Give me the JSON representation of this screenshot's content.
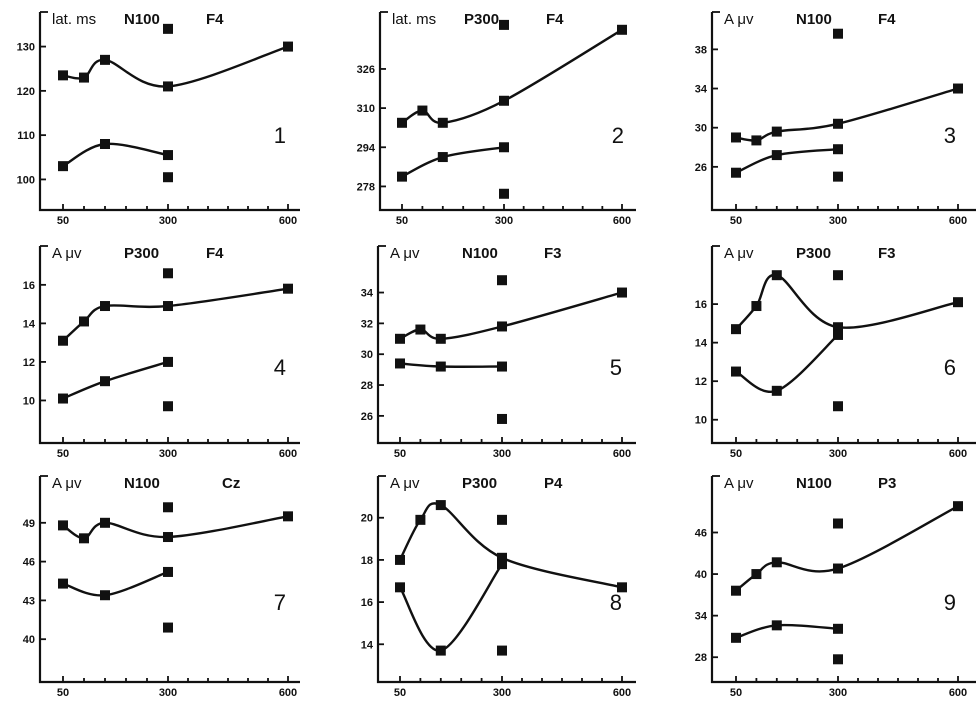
{
  "chart_data": [
    {
      "panel": "1",
      "type": "line",
      "header": [
        "lat. ms",
        "N100",
        "F4"
      ],
      "x_ticks": [
        50,
        300,
        600
      ],
      "y_ticks": [
        100,
        110,
        120,
        130
      ],
      "ylim": [
        94,
        136
      ],
      "series": [
        {
          "x": [
            50,
            100,
            150,
            300,
            600
          ],
          "y": [
            123.5,
            123,
            127,
            121,
            130
          ]
        },
        {
          "x": [
            50,
            150,
            300
          ],
          "y": [
            103,
            108,
            105.5
          ]
        }
      ],
      "points": [
        {
          "x": 300,
          "y": 134
        },
        {
          "x": 300,
          "y": 100.5
        }
      ]
    },
    {
      "panel": "2",
      "type": "line",
      "header": [
        "lat. ms",
        "P300",
        "F4"
      ],
      "x_ticks": [
        50,
        300,
        600
      ],
      "y_ticks": [
        278,
        294,
        310,
        326
      ],
      "ylim": [
        270,
        346
      ],
      "series": [
        {
          "x": [
            50,
            100,
            150,
            300,
            600
          ],
          "y": [
            304,
            309,
            304,
            313,
            342
          ]
        },
        {
          "x": [
            50,
            150,
            300
          ],
          "y": [
            282,
            290,
            294
          ]
        }
      ],
      "points": [
        {
          "x": 300,
          "y": 344
        },
        {
          "x": 300,
          "y": 275
        }
      ]
    },
    {
      "panel": "3",
      "type": "line",
      "header": [
        "A μv",
        "N100",
        "F4"
      ],
      "x_ticks": [
        50,
        300,
        600
      ],
      "y_ticks": [
        26,
        30,
        34,
        38
      ],
      "ylim": [
        22,
        41
      ],
      "series": [
        {
          "x": [
            50,
            100,
            150,
            300,
            600
          ],
          "y": [
            29,
            28.7,
            29.6,
            30.4,
            34
          ]
        },
        {
          "x": [
            50,
            150,
            300
          ],
          "y": [
            25.4,
            27.2,
            27.8
          ]
        }
      ],
      "points": [
        {
          "x": 300,
          "y": 39.6
        },
        {
          "x": 300,
          "y": 25
        }
      ]
    },
    {
      "panel": "4",
      "type": "line",
      "header": [
        "A μv",
        "P300",
        "F4"
      ],
      "x_ticks": [
        50,
        300,
        600
      ],
      "y_ticks": [
        10,
        12,
        14,
        16
      ],
      "ylim": [
        8,
        17.6
      ],
      "series": [
        {
          "x": [
            50,
            100,
            150,
            300,
            600
          ],
          "y": [
            13.1,
            14.1,
            14.9,
            14.9,
            15.8
          ]
        },
        {
          "x": [
            50,
            150,
            300
          ],
          "y": [
            10.1,
            11,
            12
          ]
        }
      ],
      "points": [
        {
          "x": 300,
          "y": 16.6
        },
        {
          "x": 300,
          "y": 9.7
        }
      ]
    },
    {
      "panel": "5",
      "type": "line",
      "header": [
        "A μv",
        "N100",
        "F3"
      ],
      "x_ticks": [
        50,
        300,
        600
      ],
      "y_ticks": [
        26,
        28,
        30,
        32,
        34
      ],
      "ylim": [
        24.5,
        36.5
      ],
      "series": [
        {
          "x": [
            50,
            100,
            150,
            300,
            600
          ],
          "y": [
            31,
            31.6,
            31,
            31.8,
            34
          ]
        },
        {
          "x": [
            50,
            150,
            300
          ],
          "y": [
            29.4,
            29.2,
            29.2
          ]
        }
      ],
      "points": [
        {
          "x": 300,
          "y": 34.8
        },
        {
          "x": 300,
          "y": 25.8
        }
      ]
    },
    {
      "panel": "6",
      "type": "line",
      "header": [
        "A μv",
        "P300",
        "F3"
      ],
      "x_ticks": [
        50,
        300,
        600
      ],
      "y_ticks": [
        10,
        12,
        14,
        16
      ],
      "ylim": [
        9,
        18.6
      ],
      "series": [
        {
          "x": [
            50,
            100,
            150,
            300,
            600
          ],
          "y": [
            14.7,
            15.9,
            17.5,
            14.8,
            16.1
          ]
        },
        {
          "x": [
            50,
            150,
            300
          ],
          "y": [
            12.5,
            11.5,
            14.4
          ]
        }
      ],
      "points": [
        {
          "x": 300,
          "y": 17.5
        },
        {
          "x": 300,
          "y": 10.7
        }
      ]
    },
    {
      "panel": "7",
      "type": "line",
      "header": [
        "A μv",
        "N100",
        "Cz"
      ],
      "x_ticks": [
        50,
        300,
        600
      ],
      "y_ticks": [
        40,
        43,
        46,
        49
      ],
      "ylim": [
        37,
        52
      ],
      "series": [
        {
          "x": [
            50,
            100,
            150,
            300,
            600
          ],
          "y": [
            48.8,
            47.8,
            49,
            47.9,
            49.5
          ]
        },
        {
          "x": [
            50,
            150,
            300
          ],
          "y": [
            44.3,
            43.4,
            45.2
          ]
        }
      ],
      "points": [
        {
          "x": 300,
          "y": 50.2
        },
        {
          "x": 300,
          "y": 40.9
        }
      ]
    },
    {
      "panel": "8",
      "type": "line",
      "header": [
        "A μv",
        "P300",
        "P4"
      ],
      "x_ticks": [
        50,
        300,
        600
      ],
      "y_ticks": [
        14,
        16,
        18,
        20
      ],
      "ylim": [
        12.4,
        21.6
      ],
      "series": [
        {
          "x": [
            50,
            100,
            150,
            300,
            600
          ],
          "y": [
            18,
            19.9,
            20.6,
            18.1,
            16.7
          ]
        },
        {
          "x": [
            50,
            150,
            300
          ],
          "y": [
            16.7,
            13.7,
            17.8
          ]
        }
      ],
      "points": [
        {
          "x": 300,
          "y": 19.9
        },
        {
          "x": 300,
          "y": 13.7
        }
      ]
    },
    {
      "panel": "9",
      "type": "line",
      "header": [
        "A μv",
        "N100",
        "P3"
      ],
      "x_ticks": [
        50,
        300,
        600
      ],
      "y_ticks": [
        28,
        34,
        40,
        46
      ],
      "ylim": [
        25,
        53
      ],
      "series": [
        {
          "x": [
            50,
            100,
            150,
            300,
            600
          ],
          "y": [
            37.6,
            40,
            41.7,
            40.8,
            49.8
          ]
        },
        {
          "x": [
            50,
            150,
            300
          ],
          "y": [
            30.8,
            32.6,
            32.1
          ]
        }
      ],
      "points": [
        {
          "x": 300,
          "y": 47.3
        },
        {
          "x": 300,
          "y": 27.7
        }
      ]
    }
  ]
}
